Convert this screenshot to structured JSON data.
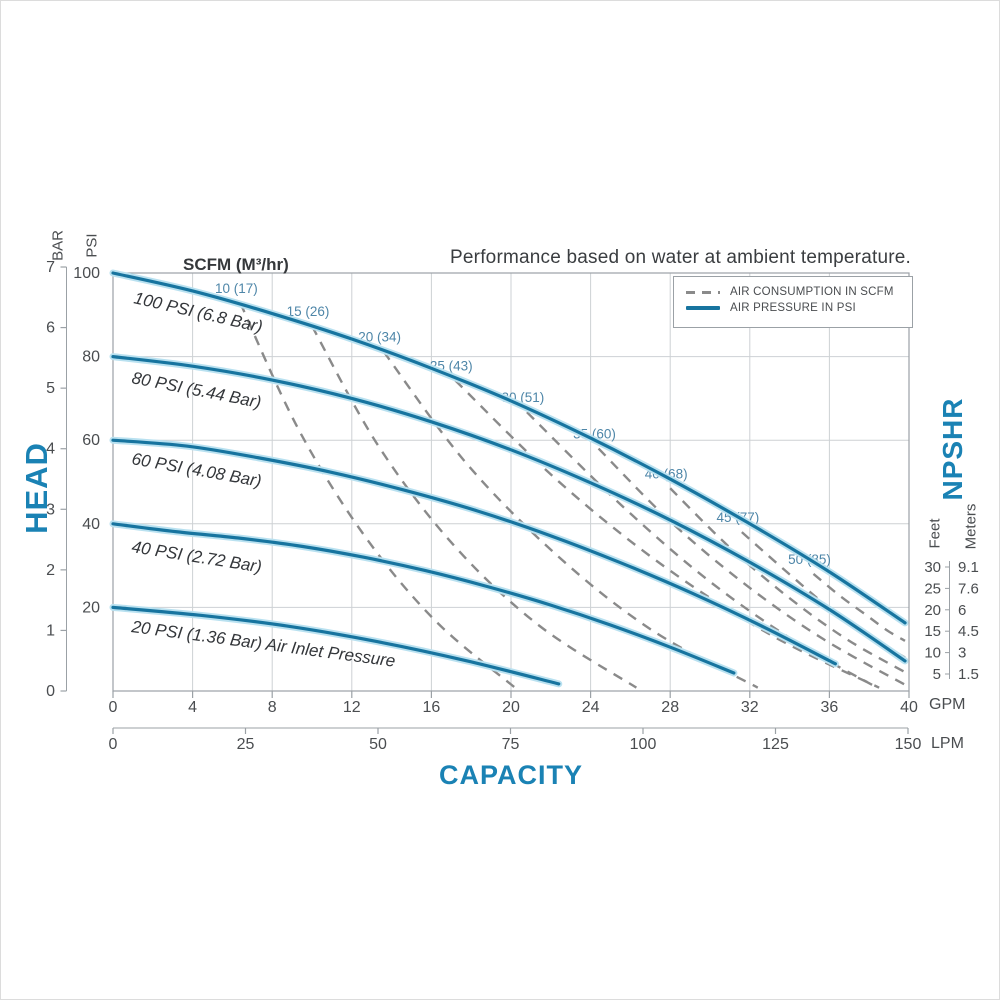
{
  "title": "Performance based on water at ambient temperature.",
  "scfm_header": "SCFM (M³/hr)",
  "legend": {
    "air_consumption_label": "AIR CONSUMPTION IN SCFM",
    "air_pressure_label": "AIR PRESSURE IN PSI"
  },
  "axis_labels": {
    "head": "HEAD",
    "bar": "BAR",
    "psi": "PSI",
    "capacity": "CAPACITY",
    "gpm": "GPM",
    "lpm": "LPM",
    "npshr": "NPSHR",
    "feet": "Feet",
    "meters": "Meters"
  },
  "colors": {
    "curve_blue": "#17749f",
    "curve_halo": "#b9e1f0",
    "heading_blue": "#1a82b4",
    "scfm_label_blue": "#4e86a8",
    "dash_gray": "#8a8a8a",
    "grid_gray": "#cdd1d4",
    "axis_gray": "#9ba1a6",
    "text_dark": "#3a3d40"
  },
  "chart_data": {
    "type": "line",
    "x_axis": {
      "label": "CAPACITY",
      "units": [
        "GPM",
        "LPM"
      ],
      "gpm_ticks": [
        0,
        4,
        8,
        12,
        16,
        20,
        24,
        28,
        32,
        36,
        40
      ],
      "lpm_ticks": [
        0,
        25,
        50,
        75,
        100,
        125,
        150
      ],
      "gpm_range": [
        0,
        40
      ]
    },
    "y_axis": {
      "label": "HEAD",
      "units": [
        "BAR",
        "PSI"
      ],
      "bar_ticks": [
        7,
        6,
        5,
        4,
        3,
        2,
        1,
        0
      ],
      "psi_ticks": [
        100,
        80,
        60,
        40,
        20
      ],
      "psi_range": [
        0,
        100
      ]
    },
    "right_axis": {
      "label": "NPSHR",
      "feet_ticks": [
        "30",
        "25",
        "20",
        "15",
        "10",
        "5"
      ],
      "meters_ticks": [
        "9.1",
        "7.6",
        "6",
        "4.5",
        "3",
        "1.5"
      ]
    },
    "grid": true,
    "legend_position": "top-right",
    "pressure_curves": [
      {
        "label": "100 PSI (6.8 Bar)",
        "psi": 100,
        "bar": 6.8,
        "points": [
          [
            0,
            100
          ],
          [
            4,
            95.7
          ],
          [
            8,
            90.3
          ],
          [
            12,
            84.2
          ],
          [
            16,
            77.2
          ],
          [
            20,
            69.4
          ],
          [
            24,
            60.5
          ],
          [
            28,
            50.7
          ],
          [
            32,
            40.0
          ],
          [
            36,
            28.5
          ],
          [
            39.8,
            16.3
          ]
        ]
      },
      {
        "label": "80 PSI (5.44 Bar)",
        "psi": 80,
        "bar": 5.44,
        "points": [
          [
            0,
            80
          ],
          [
            4,
            77.7
          ],
          [
            8,
            74.4
          ],
          [
            12,
            70.0
          ],
          [
            16,
            64.4
          ],
          [
            20,
            57.7
          ],
          [
            24,
            49.8
          ],
          [
            28,
            40.9
          ],
          [
            32,
            30.8
          ],
          [
            36,
            19.5
          ],
          [
            39.8,
            7.2
          ]
        ]
      },
      {
        "label": "60 PSI (4.08 Bar)",
        "psi": 60,
        "bar": 4.08,
        "points": [
          [
            0,
            60
          ],
          [
            3.7,
            58.6
          ],
          [
            7.3,
            55.8
          ],
          [
            11,
            52.3
          ],
          [
            14.6,
            48.1
          ],
          [
            18.3,
            43.1
          ],
          [
            21.9,
            37.3
          ],
          [
            25.5,
            30.7
          ],
          [
            29.1,
            23.4
          ],
          [
            32.7,
            15.3
          ],
          [
            36.3,
            6.5
          ]
        ]
      },
      {
        "label": "40 PSI (2.72 Bar)",
        "psi": 40,
        "bar": 2.72,
        "points": [
          [
            0,
            40
          ],
          [
            3.2,
            38.1
          ],
          [
            6.3,
            36.6
          ],
          [
            9.5,
            34.6
          ],
          [
            12.6,
            32.0
          ],
          [
            15.7,
            28.8
          ],
          [
            18.8,
            25.0
          ],
          [
            21.9,
            20.7
          ],
          [
            25,
            15.8
          ],
          [
            28.1,
            10.3
          ],
          [
            31.2,
            4.3
          ]
        ]
      },
      {
        "label": "20 PSI (1.36 Bar)",
        "psi": 20,
        "bar": 1.36,
        "note": "Air Inlet Pressure",
        "points": [
          [
            0,
            20
          ],
          [
            4.4,
            18.1
          ],
          [
            8.8,
            15.5
          ],
          [
            13.3,
            11.8
          ],
          [
            17.8,
            7.2
          ],
          [
            22.4,
            1.7
          ]
        ]
      }
    ],
    "air_consumption_lines": [
      {
        "scfm": 10,
        "m3hr": 17,
        "label": "10 (17)",
        "points": [
          [
            6.4,
            92.8
          ],
          [
            9.3,
            62.8
          ],
          [
            12.6,
            37.4
          ],
          [
            16.2,
            16.8
          ],
          [
            20.2,
            0.8
          ]
        ]
      },
      {
        "scfm": 15,
        "m3hr": 26,
        "label": "15 (26)",
        "points": [
          [
            10,
            87.3
          ],
          [
            13.3,
            58.9
          ],
          [
            17.1,
            35.0
          ],
          [
            21.4,
            15.7
          ],
          [
            26.3,
            0.8
          ]
        ]
      },
      {
        "scfm": 20,
        "m3hr": 34,
        "label": "20 (34)",
        "points": [
          [
            13.6,
            81.2
          ],
          [
            17.7,
            54.8
          ],
          [
            22.3,
            32.5
          ],
          [
            27.1,
            14.5
          ],
          [
            32.4,
            0.8
          ]
        ]
      },
      {
        "scfm": 25,
        "m3hr": 43,
        "label": "25 (43)",
        "points": [
          [
            17.2,
            74.3
          ],
          [
            22.4,
            50.1
          ],
          [
            27.7,
            29.8
          ],
          [
            33.1,
            13.3
          ],
          [
            38.5,
            0.8
          ]
        ]
      },
      {
        "scfm": 30,
        "m3hr": 51,
        "label": "30 (51)",
        "points": [
          [
            20.8,
            66.7
          ],
          [
            25.4,
            45.1
          ],
          [
            29.8,
            26.9
          ],
          [
            34.2,
            12.1
          ],
          [
            38.4,
            0.8
          ]
        ]
      },
      {
        "scfm": 35,
        "m3hr": 60,
        "label": "35 (60)",
        "points": [
          [
            24.4,
            58.0
          ],
          [
            28.0,
            40.6
          ],
          [
            31.8,
            25.4
          ],
          [
            35.7,
            12.4
          ],
          [
            39.8,
            1.5
          ]
        ]
      },
      {
        "scfm": 40,
        "m3hr": 68,
        "label": "40 (68)",
        "points": [
          [
            28.0,
            48.5
          ],
          [
            31.0,
            34.3
          ],
          [
            34.0,
            22.2
          ],
          [
            36.9,
            12.3
          ],
          [
            39.8,
            4.5
          ]
        ]
      },
      {
        "scfm": 45,
        "m3hr": 77,
        "label": "45 (77)",
        "points": [
          [
            31.6,
            38.0
          ],
          [
            34.0,
            27.9
          ],
          [
            36.1,
            19.5
          ],
          [
            38.1,
            12.9
          ],
          [
            39.8,
            8.0
          ]
        ]
      },
      {
        "scfm": 50,
        "m3hr": 85,
        "label": "50 (85)",
        "points": [
          [
            35.2,
            28.0
          ],
          [
            36.6,
            22.5
          ],
          [
            37.9,
            18.0
          ],
          [
            38.9,
            14.5
          ],
          [
            39.8,
            12.0
          ]
        ]
      }
    ]
  }
}
